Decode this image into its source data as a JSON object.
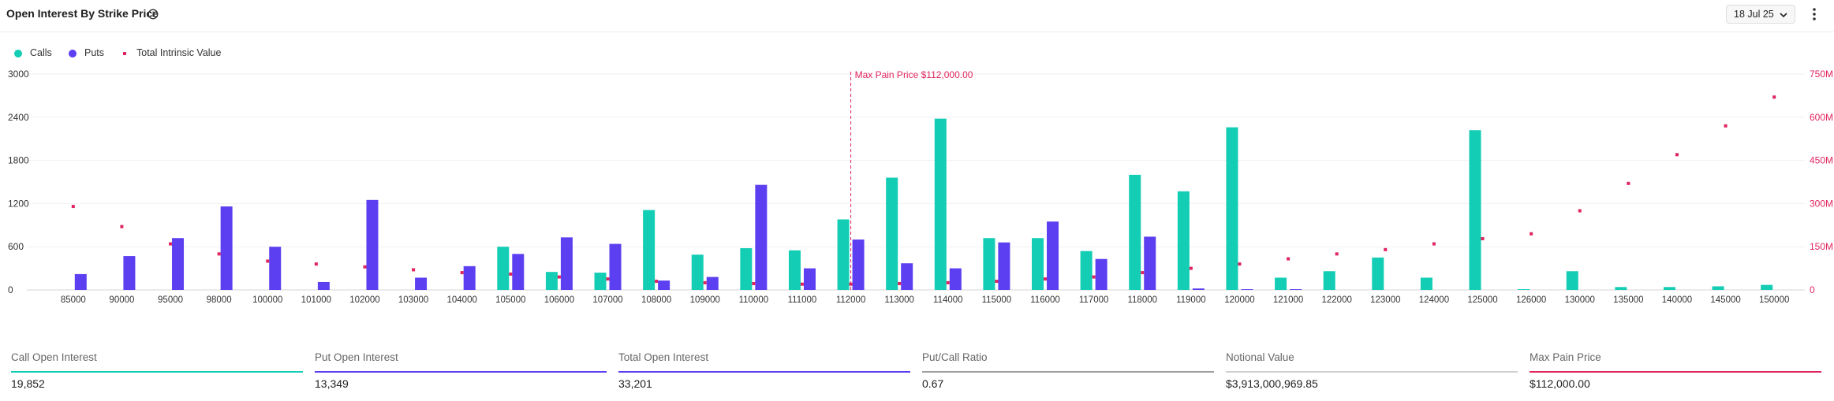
{
  "header": {
    "title": "Open Interest By Strike Price",
    "date_label": "18 Jul 25"
  },
  "legend": [
    {
      "label": "Calls",
      "color": "#13cdb5",
      "shape": "circle"
    },
    {
      "label": "Puts",
      "color": "#5b3ff0",
      "shape": "circle"
    },
    {
      "label": "Total Intrinsic Value",
      "color": "#e0245e",
      "shape": "square"
    }
  ],
  "chart_data": {
    "type": "bar",
    "categories": [
      "85000",
      "90000",
      "95000",
      "98000",
      "100000",
      "101000",
      "102000",
      "103000",
      "104000",
      "105000",
      "106000",
      "107000",
      "108000",
      "109000",
      "110000",
      "111000",
      "112000",
      "113000",
      "114000",
      "115000",
      "116000",
      "117000",
      "118000",
      "119000",
      "120000",
      "121000",
      "122000",
      "123000",
      "124000",
      "125000",
      "126000",
      "130000",
      "135000",
      "140000",
      "145000",
      "150000"
    ],
    "series": [
      {
        "name": "Calls",
        "axis": "left",
        "color": "#13cdb5",
        "values": [
          0,
          0,
          0,
          0,
          0,
          0,
          0,
          0,
          0,
          600,
          250,
          240,
          1110,
          490,
          580,
          550,
          980,
          1560,
          2380,
          720,
          720,
          540,
          1600,
          1370,
          2260,
          170,
          260,
          450,
          170,
          2220,
          10,
          260,
          40,
          40,
          50,
          70
        ]
      },
      {
        "name": "Puts",
        "axis": "left",
        "color": "#5b3ff0",
        "values": [
          220,
          470,
          720,
          1160,
          600,
          110,
          1250,
          170,
          330,
          500,
          730,
          640,
          130,
          180,
          1460,
          300,
          700,
          370,
          300,
          660,
          950,
          430,
          740,
          20,
          10,
          10,
          0,
          0,
          0,
          0,
          0,
          0,
          0,
          0,
          0,
          0
        ]
      },
      {
        "name": "Total Intrinsic Value",
        "axis": "right",
        "color": "#e0245e",
        "type": "scatter",
        "values": [
          290000000,
          220000000,
          160000000,
          125000000,
          100000000,
          90000000,
          80000000,
          70000000,
          60000000,
          55000000,
          45000000,
          38000000,
          30000000,
          25000000,
          22000000,
          20000000,
          20000000,
          22000000,
          25000000,
          30000000,
          38000000,
          45000000,
          60000000,
          75000000,
          90000000,
          108000000,
          125000000,
          140000000,
          160000000,
          178000000,
          195000000,
          275000000,
          370000000,
          470000000,
          570000000,
          670000000
        ]
      }
    ],
    "y_left": {
      "min": 0,
      "max": 3000,
      "ticks": [
        "0",
        "600",
        "1200",
        "1800",
        "2400",
        "3000"
      ]
    },
    "y_right": {
      "min": 0,
      "max": 750000000,
      "ticks": [
        "0",
        "150M",
        "300M",
        "450M",
        "600M",
        "750M"
      ]
    },
    "max_pain": {
      "strike": "112000",
      "label": "Max Pain Price $112,000.00",
      "color": "#e0245e"
    },
    "grid": true
  },
  "stats": [
    {
      "label": "Call Open Interest",
      "value": "19,852",
      "color": "#13cdb5"
    },
    {
      "label": "Put Open Interest",
      "value": "13,349",
      "color": "#5b3ff0"
    },
    {
      "label": "Total Open Interest",
      "value": "33,201",
      "color": "#5b3ff0"
    },
    {
      "label": "Put/Call Ratio",
      "value": "0.67",
      "color": "#9e9e9e"
    },
    {
      "label": "Notional Value",
      "value": "$3,913,000,969.85",
      "color": "#cfcfcf"
    },
    {
      "label": "Max Pain Price",
      "value": "$112,000.00",
      "color": "#e0245e"
    }
  ]
}
